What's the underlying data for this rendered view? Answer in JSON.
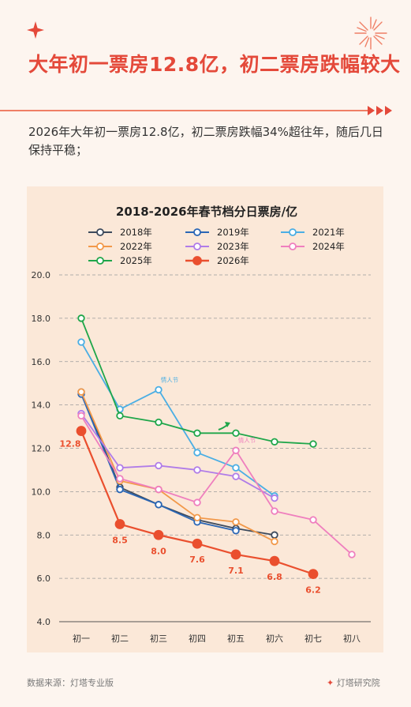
{
  "header": {
    "headline": "大年初一票房12.8亿，初二票房跌幅较大",
    "subtitle": "2026年大年初一票房12.8亿，初二票房跌幅34%超往年，随后几日保持平稳；"
  },
  "footer": {
    "source": "数据来源：灯塔专业版",
    "brand": "灯塔研究院"
  },
  "colors": {
    "headline": "#e4493a",
    "accent": "#ef7f66",
    "card_bg": "#fbe8d8"
  },
  "chart_data": {
    "type": "line",
    "title": "2018-2026年春节档分日票房/亿",
    "xlabel": "",
    "ylabel": "",
    "categories": [
      "初一",
      "初二",
      "初三",
      "初四",
      "初五",
      "初六",
      "初七",
      "初八"
    ],
    "ylim": [
      4.0,
      20.0
    ],
    "yticks": [
      "4.0",
      "6.0",
      "8.0",
      "10.0",
      "12.0",
      "14.0",
      "16.0",
      "18.0",
      "20.0"
    ],
    "grid": "horizontal dashed",
    "legend_position": "top",
    "series": [
      {
        "name": "2018年",
        "color": "#3d4a5c",
        "values": [
          14.6,
          10.2,
          9.4,
          8.7,
          8.3,
          8.0,
          null,
          null
        ]
      },
      {
        "name": "2019年",
        "color": "#2a66b5",
        "values": [
          14.5,
          10.1,
          9.4,
          8.6,
          8.2,
          null,
          null,
          null
        ]
      },
      {
        "name": "2021年",
        "color": "#4aaee4",
        "values": [
          16.9,
          13.8,
          14.7,
          11.8,
          11.1,
          9.8,
          null,
          null
        ]
      },
      {
        "name": "2022年",
        "color": "#f2994a",
        "values": [
          14.6,
          10.5,
          10.1,
          8.8,
          8.6,
          7.7,
          null,
          null
        ]
      },
      {
        "name": "2023年",
        "color": "#b07ce8",
        "values": [
          13.6,
          11.1,
          11.2,
          11.0,
          10.7,
          9.7,
          null,
          null
        ]
      },
      {
        "name": "2024年",
        "color": "#ef7fbe",
        "values": [
          13.5,
          10.6,
          10.1,
          9.5,
          11.9,
          9.1,
          8.7,
          7.1
        ]
      },
      {
        "name": "2025年",
        "color": "#1fa64a",
        "values": [
          18.0,
          13.5,
          13.2,
          12.7,
          12.7,
          12.3,
          12.2,
          null
        ]
      },
      {
        "name": "2026年",
        "color": "#ea4f2e",
        "values": [
          12.8,
          8.5,
          8.0,
          7.6,
          7.1,
          6.8,
          6.2,
          null
        ],
        "data_labels": [
          "12.8",
          "8.5",
          "8.0",
          "7.6",
          "7.1",
          "6.8",
          "6.2"
        ]
      }
    ],
    "annotations": [
      {
        "text": "情人节",
        "series": "2021年",
        "category": "初三"
      },
      {
        "text": "情人节",
        "series": "2024年",
        "category": "初五"
      }
    ]
  }
}
